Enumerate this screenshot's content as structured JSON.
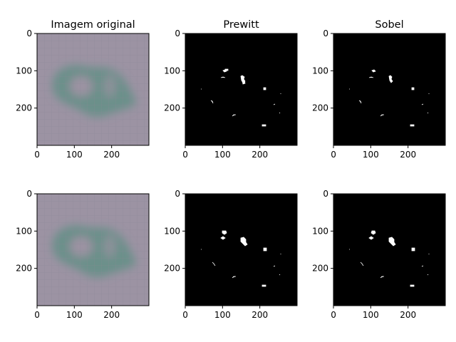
{
  "figure": {
    "background": "#ffffff"
  },
  "chart_data": [
    {
      "type": "image",
      "title": "Imagem original",
      "x_ticks": [
        0,
        100,
        200
      ],
      "y_ticks": [
        0,
        100,
        200
      ],
      "xlim": [
        0,
        300
      ],
      "ylim": [
        300,
        0
      ],
      "image_kind": "original-blurred-grayish-purple-with-teal-blob"
    },
    {
      "type": "image",
      "title": "Prewitt",
      "x_ticks": [
        0,
        100,
        200
      ],
      "y_ticks": [
        0,
        100,
        200
      ],
      "xlim": [
        0,
        300
      ],
      "ylim": [
        300,
        0
      ],
      "image_kind": "binary-edge-map"
    },
    {
      "type": "image",
      "title": "Sobel",
      "x_ticks": [
        0,
        100,
        200
      ],
      "y_ticks": [
        0,
        100,
        200
      ],
      "xlim": [
        0,
        300
      ],
      "ylim": [
        300,
        0
      ],
      "image_kind": "binary-edge-map"
    },
    {
      "type": "image",
      "title": "",
      "x_ticks": [
        0,
        100,
        200
      ],
      "y_ticks": [
        0,
        100,
        200
      ],
      "xlim": [
        0,
        300
      ],
      "ylim": [
        300,
        0
      ],
      "image_kind": "original-blurred-grayish-purple-with-teal-blob"
    },
    {
      "type": "image",
      "title": "",
      "x_ticks": [
        0,
        100,
        200
      ],
      "y_ticks": [
        0,
        100,
        200
      ],
      "xlim": [
        0,
        300
      ],
      "ylim": [
        300,
        0
      ],
      "image_kind": "binary-edge-map"
    },
    {
      "type": "image",
      "title": "",
      "x_ticks": [
        0,
        100,
        200
      ],
      "y_ticks": [
        0,
        100,
        200
      ],
      "xlim": [
        0,
        300
      ],
      "ylim": [
        300,
        0
      ],
      "image_kind": "binary-edge-map"
    }
  ],
  "colors": {
    "original_base": "#9c93a3",
    "original_blob": "#5f8f84",
    "edge_background": "#000000",
    "edge_foreground": "#ffffff"
  }
}
